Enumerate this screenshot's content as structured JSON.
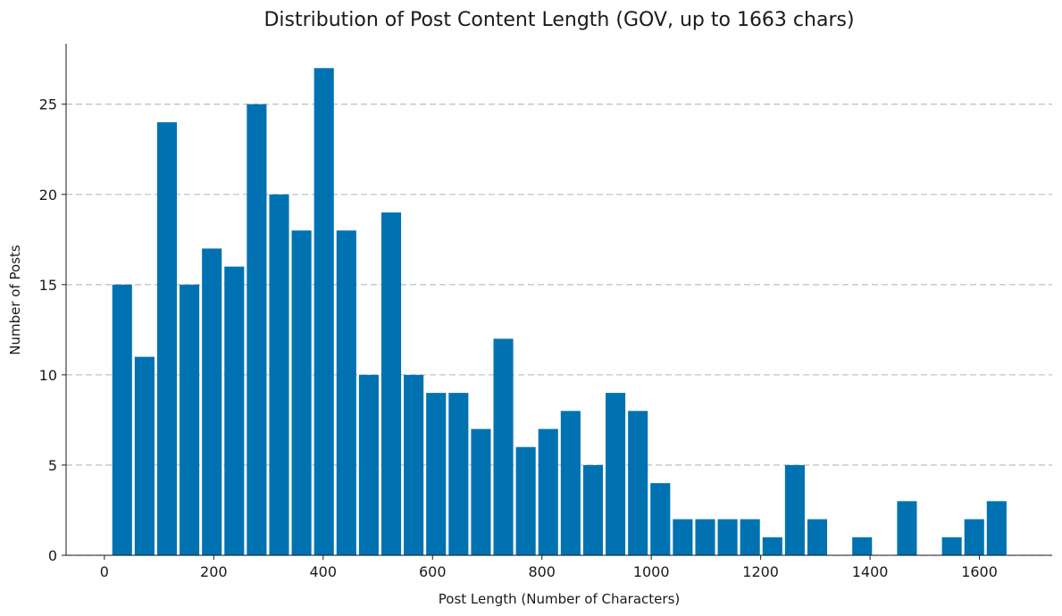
{
  "chart_data": {
    "type": "bar",
    "title": "Distribution of Post Content Length (GOV, up to 1663 chars)",
    "xlabel": "Post Length (Number of Characters)",
    "ylabel": "Number of Posts",
    "bin_width": 41,
    "x": [
      12,
      53,
      94,
      135,
      176,
      217,
      258,
      299,
      340,
      381,
      422,
      463,
      504,
      545,
      586,
      627,
      668,
      709,
      750,
      791,
      832,
      873,
      914,
      955,
      996,
      1037,
      1078,
      1119,
      1160,
      1201,
      1242,
      1283,
      1324,
      1365,
      1406,
      1447,
      1488,
      1529,
      1570,
      1611
    ],
    "values": [
      15,
      11,
      24,
      15,
      17,
      16,
      25,
      20,
      18,
      27,
      18,
      10,
      19,
      10,
      9,
      9,
      7,
      12,
      6,
      7,
      8,
      5,
      9,
      8,
      4,
      2,
      2,
      2,
      2,
      1,
      5,
      2,
      0,
      1,
      0,
      3,
      0,
      1,
      2,
      3
    ],
    "xlim": [
      -70,
      1733
    ],
    "ylim": [
      0,
      28.35
    ],
    "xticks": [
      0,
      200,
      400,
      600,
      800,
      1000,
      1200,
      1400,
      1600
    ],
    "yticks": [
      0,
      5,
      10,
      15,
      20,
      25
    ],
    "grid": "horizontal-dashed",
    "bar_color": "#0072B2",
    "grid_color": "#c4c4c4",
    "axis_color": "#1a1a1a"
  }
}
